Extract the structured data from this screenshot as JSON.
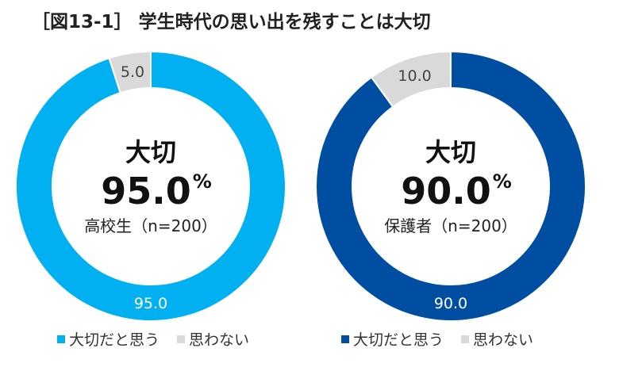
{
  "title": "［図13-1］ 学生時代の思い出を残すことは大切",
  "colors": {
    "agree_left": "#00B0F0",
    "agree_right": "#004EA2",
    "disagree": "#D9D9D9"
  },
  "chart_data": [
    {
      "type": "pie",
      "donut": true,
      "center_label": "大切",
      "center_value": "95.0%",
      "sample": "高校生（n=200）",
      "categories": [
        "大切だと思う",
        "思わない"
      ],
      "values": [
        95.0,
        5.0
      ],
      "data_labels": [
        "95.0",
        "5.0"
      ],
      "legend": "bottom"
    },
    {
      "type": "pie",
      "donut": true,
      "center_label": "大切",
      "center_value": "90.0%",
      "sample": "保護者（n=200）",
      "categories": [
        "大切だと思う",
        "思わない"
      ],
      "values": [
        90.0,
        10.0
      ],
      "data_labels": [
        "90.0",
        "10.0"
      ],
      "legend": "bottom"
    }
  ]
}
